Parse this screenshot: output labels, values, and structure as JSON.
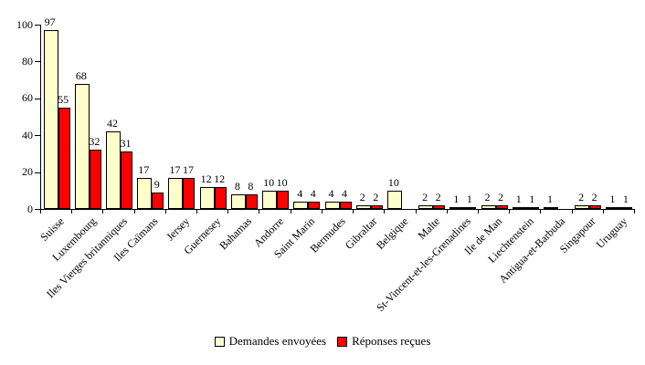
{
  "chart_data": {
    "type": "bar",
    "title": "",
    "categories": [
      "Suisse",
      "Luxembourg",
      "Iles Vierges britanniques",
      "Iles Caïmans",
      "Jersey",
      "Guernesey",
      "Bahamas",
      "Andorre",
      "Saint Marin",
      "Bermudes",
      "Gibraltar",
      "Belgique",
      "Malte",
      "St-Vincent-et-les-Grenadines",
      "Ile de Man",
      "Liechtenstein",
      "Antigua-et-Barbuda",
      "Singapour",
      "Uruguay"
    ],
    "series": [
      {
        "name": "Demandes envoyées",
        "color": "#FFFFCC",
        "values": [
          97,
          68,
          42,
          17,
          17,
          12,
          8,
          10,
          4,
          4,
          2,
          10,
          2,
          1,
          2,
          1,
          1,
          2,
          1
        ]
      },
      {
        "name": "Réponses reçues",
        "color": "#FF0000",
        "values": [
          55,
          32,
          31,
          9,
          17,
          12,
          8,
          10,
          4,
          4,
          2,
          null,
          2,
          1,
          2,
          1,
          null,
          2,
          1
        ]
      }
    ],
    "ylim": [
      0,
      100
    ],
    "yticks": [
      0,
      20,
      40,
      60,
      80,
      100
    ],
    "grid": false,
    "legend_position": "bottom",
    "axis_color": "#000000",
    "bar_border_color": "#000000"
  }
}
